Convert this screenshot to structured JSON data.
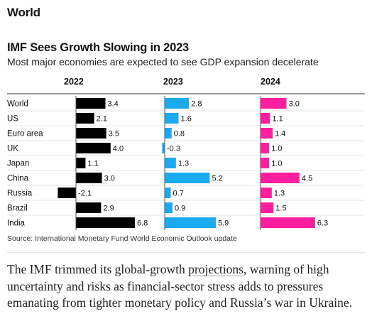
{
  "section": {
    "title": "World"
  },
  "chart_data": {
    "type": "bar",
    "title": "IMF Sees Growth Slowing in 2023",
    "subtitle": "Most major economies are expected to see GDP expansion decelerate",
    "categories": [
      "World",
      "US",
      "Euro area",
      "UK",
      "Japan",
      "China",
      "Russia",
      "Brazil",
      "India"
    ],
    "series": [
      {
        "name": "2022",
        "color": "#000000",
        "values": [
          3.4,
          2.1,
          3.5,
          4.0,
          1.1,
          3.0,
          -2.1,
          2.9,
          6.8
        ],
        "labels": [
          "3.4",
          "2.1",
          "3.5",
          "4.0",
          "1.1",
          "3.0",
          "-2.1",
          "2.9",
          "6.8"
        ]
      },
      {
        "name": "2023",
        "color": "#1aaaf0",
        "values": [
          2.8,
          1.6,
          0.8,
          -0.3,
          1.3,
          5.2,
          0.7,
          0.9,
          5.9
        ],
        "labels": [
          "2.8",
          "1.6",
          "0.8",
          "-0.3",
          "1.3",
          "5.2",
          "0.7",
          "0.9",
          "5.9"
        ]
      },
      {
        "name": "2024",
        "color": "#ff1e9e",
        "values": [
          3.0,
          1.1,
          1.4,
          1.0,
          1.0,
          4.5,
          1.3,
          1.5,
          6.3
        ],
        "labels": [
          "3.0",
          "1.1",
          "1.4",
          "1.0",
          "1.0",
          "4.5",
          "1.3",
          "1.5",
          "6.3"
        ]
      }
    ]
  },
  "source": "Source: International Monetary Fund World Economic Outlook update",
  "article": {
    "before": "The IMF trimmed its global-growth ",
    "link": "projections",
    "after": ", warning of high uncertainty and risks as financial-sector stress adds to pressures emanating from tighter monetary policy and Russia’s war in Ukraine."
  }
}
